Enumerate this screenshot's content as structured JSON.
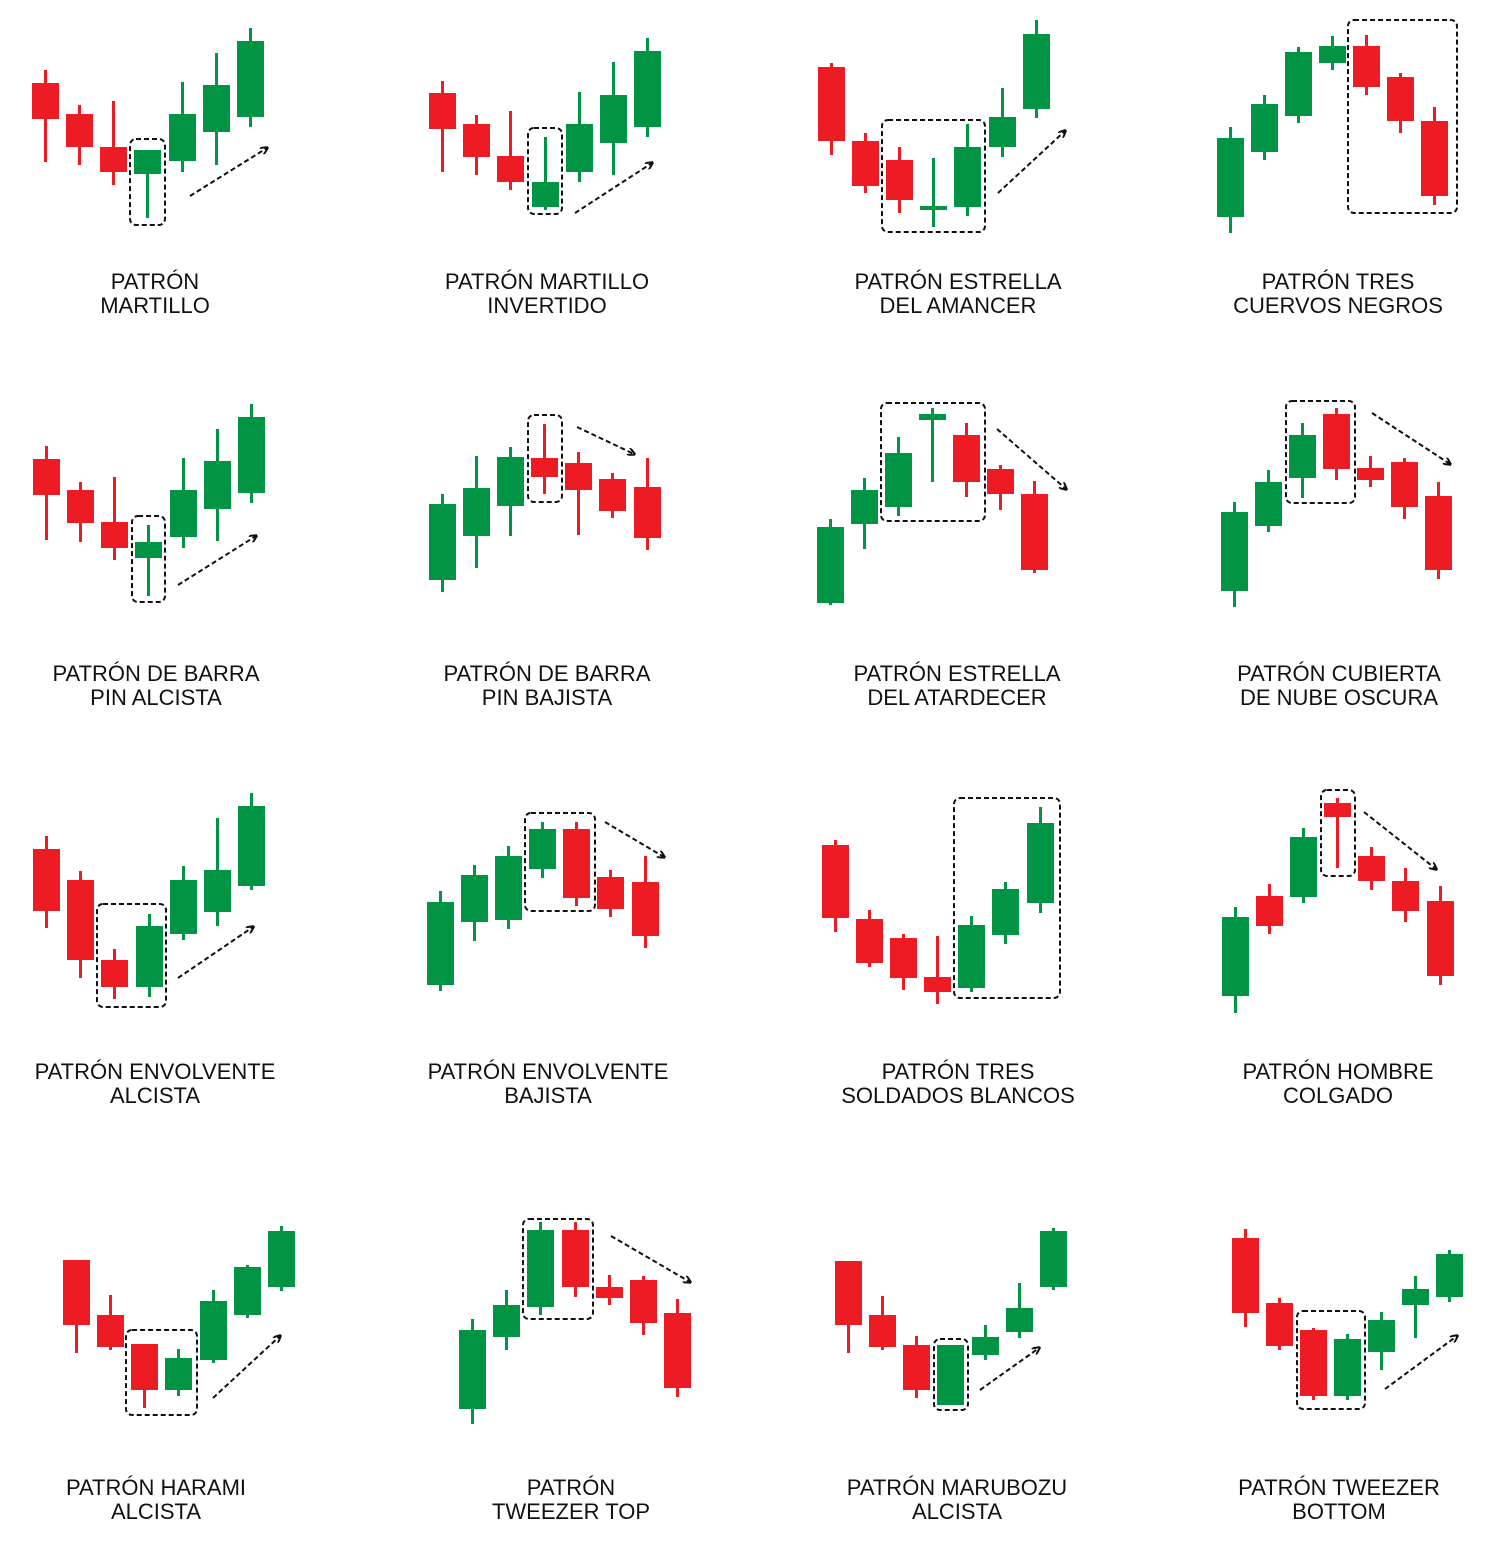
{
  "colors": {
    "bullish": "#009444",
    "bearish": "#ed1c24",
    "highlight_box": "#111111",
    "arrow": "#111111"
  },
  "patterns": [
    {
      "line1": "PATRÓN",
      "line2": "MARTILLO",
      "trend": "up"
    },
    {
      "line1": "PATRÓN MARTILLO",
      "line2": "INVERTIDO",
      "trend": "up"
    },
    {
      "line1": "PATRÓN ESTRELLA",
      "line2": "DEL AMANCER",
      "trend": "up"
    },
    {
      "line1": "PATRÓN TRES",
      "line2": "CUERVOS NEGROS",
      "trend": "none"
    },
    {
      "line1": "PATRÓN DE BARRA",
      "line2": "PIN ALCISTA",
      "trend": "up"
    },
    {
      "line1": "PATRÓN DE BARRA",
      "line2": "PIN BAJISTA",
      "trend": "down"
    },
    {
      "line1": "PATRÓN ESTRELLA",
      "line2": "DEL ATARDECER",
      "trend": "down"
    },
    {
      "line1": "PATRÓN CUBIERTA",
      "line2": "DE NUBE OSCURA",
      "trend": "down"
    },
    {
      "line1": "PATRÓN ENVOLVENTE",
      "line2": "ALCISTA",
      "trend": "up"
    },
    {
      "line1": "PATRÓN ENVOLVENTE",
      "line2": "BAJISTA",
      "trend": "down"
    },
    {
      "line1": "PATRÓN TRES",
      "line2": "SOLDADOS BLANCOS",
      "trend": "none"
    },
    {
      "line1": "PATRÓN HOMBRE",
      "line2": "COLGADO",
      "trend": "down"
    },
    {
      "line1": "PATRÓN HARAMI",
      "line2": "ALCISTA",
      "trend": "up"
    },
    {
      "line1": "PATRÓN",
      "line2": "TWEEZER TOP",
      "trend": "down"
    },
    {
      "line1": "PATRÓN MARUBOZU",
      "line2": "ALCISTA",
      "trend": "up"
    },
    {
      "line1": "PATRÓN TWEEZER",
      "line2": "BOTTOM",
      "trend": "up"
    }
  ]
}
